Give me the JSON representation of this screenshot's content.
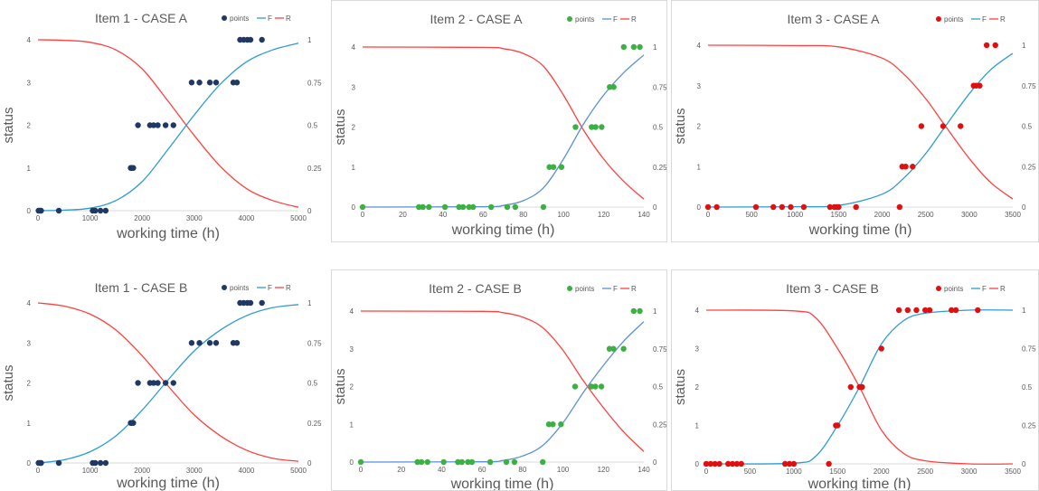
{
  "chart_data": [
    {
      "id": "item1-case-a",
      "type": "scatter",
      "title": "Item 1 - CASE A",
      "xlabel": "working time (h)",
      "ylabel": "status",
      "xlim": [
        0,
        5000
      ],
      "ylim": [
        0,
        4
      ],
      "y2lim": [
        0,
        1
      ],
      "x_ticks": [
        "0",
        "1000",
        "2000",
        "3000",
        "4000",
        "5000"
      ],
      "y_ticks": [
        "0",
        "1",
        "2",
        "3",
        "4"
      ],
      "y2_ticks": [
        "0",
        "0.25",
        "0.5",
        "0.75",
        "1"
      ],
      "legend": [
        "points",
        "F",
        "R"
      ],
      "legend_position": "top-right",
      "point_color": "#1f3864",
      "f_color": "#2e9bd1",
      "r_color": "#ff4040",
      "grid": false,
      "points": [
        [
          10,
          0
        ],
        [
          40,
          0
        ],
        [
          60,
          0
        ],
        [
          400,
          0
        ],
        [
          1050,
          0
        ],
        [
          1100,
          0
        ],
        [
          1200,
          0
        ],
        [
          1300,
          0
        ],
        [
          1780,
          1
        ],
        [
          1800,
          1
        ],
        [
          1830,
          1
        ],
        [
          1920,
          2
        ],
        [
          2150,
          2
        ],
        [
          2220,
          2
        ],
        [
          2300,
          2
        ],
        [
          2450,
          2
        ],
        [
          2600,
          2
        ],
        [
          2950,
          3
        ],
        [
          3100,
          3
        ],
        [
          3300,
          3
        ],
        [
          3420,
          3
        ],
        [
          3750,
          3
        ],
        [
          3820,
          3
        ],
        [
          3880,
          4
        ],
        [
          3950,
          4
        ],
        [
          4020,
          4
        ],
        [
          4080,
          4
        ],
        [
          4300,
          4
        ]
      ],
      "curve_F": [
        [
          0,
          0
        ],
        [
          500,
          0.003
        ],
        [
          1000,
          0.015
        ],
        [
          1500,
          0.06
        ],
        [
          2000,
          0.17
        ],
        [
          2500,
          0.36
        ],
        [
          3000,
          0.56
        ],
        [
          3500,
          0.74
        ],
        [
          4000,
          0.87
        ],
        [
          4500,
          0.94
        ],
        [
          5000,
          0.98
        ]
      ],
      "curve_R": [
        [
          0,
          1
        ],
        [
          500,
          0.997
        ],
        [
          1000,
          0.985
        ],
        [
          1500,
          0.94
        ],
        [
          2000,
          0.83
        ],
        [
          2500,
          0.64
        ],
        [
          3000,
          0.44
        ],
        [
          3500,
          0.26
        ],
        [
          4000,
          0.13
        ],
        [
          4500,
          0.06
        ],
        [
          5000,
          0.02
        ]
      ]
    },
    {
      "id": "item2-case-a",
      "type": "scatter",
      "title": "Item 2 - CASE A",
      "xlabel": "working time (h)",
      "ylabel": "status",
      "xlim": [
        0,
        140
      ],
      "ylim": [
        0,
        4
      ],
      "y2lim": [
        0,
        1
      ],
      "x_ticks": [
        "0",
        "20",
        "40",
        "60",
        "80",
        "100",
        "120",
        "140"
      ],
      "y_ticks": [
        "0",
        "1",
        "2",
        "3",
        "4"
      ],
      "y2_ticks": [
        "0",
        "0.25",
        "0.5",
        "0.75",
        "1"
      ],
      "legend": [
        "points",
        "F",
        "R"
      ],
      "legend_position": "top-right",
      "point_color": "#3cb043",
      "f_color": "#5b8fd6",
      "r_color": "#ff4040",
      "grid": false,
      "points": [
        [
          0,
          0
        ],
        [
          28,
          0
        ],
        [
          30,
          0
        ],
        [
          33,
          0
        ],
        [
          41,
          0
        ],
        [
          48,
          0
        ],
        [
          50,
          0
        ],
        [
          53,
          0
        ],
        [
          55,
          0
        ],
        [
          64,
          0
        ],
        [
          72,
          0
        ],
        [
          76,
          0
        ],
        [
          90,
          0
        ],
        [
          93,
          1
        ],
        [
          95,
          1
        ],
        [
          99,
          1
        ],
        [
          106,
          2
        ],
        [
          114,
          2
        ],
        [
          116,
          2
        ],
        [
          119,
          2
        ],
        [
          123,
          3
        ],
        [
          125,
          3
        ],
        [
          130,
          4
        ],
        [
          135,
          4
        ],
        [
          138,
          4
        ]
      ],
      "curve_F": [
        [
          0,
          0
        ],
        [
          60,
          0.002
        ],
        [
          70,
          0.01
        ],
        [
          80,
          0.04
        ],
        [
          90,
          0.12
        ],
        [
          100,
          0.3
        ],
        [
          110,
          0.52
        ],
        [
          120,
          0.7
        ],
        [
          130,
          0.84
        ],
        [
          140,
          0.95
        ]
      ],
      "curve_R": [
        [
          0,
          1
        ],
        [
          60,
          0.998
        ],
        [
          70,
          0.99
        ],
        [
          80,
          0.96
        ],
        [
          90,
          0.88
        ],
        [
          100,
          0.7
        ],
        [
          110,
          0.48
        ],
        [
          120,
          0.3
        ],
        [
          130,
          0.16
        ],
        [
          140,
          0.05
        ]
      ]
    },
    {
      "id": "item3-case-a",
      "type": "scatter",
      "title": "Item 3 - CASE A",
      "xlabel": "working time (h)",
      "ylabel": "status",
      "xlim": [
        0,
        3500
      ],
      "ylim": [
        0,
        4
      ],
      "y2lim": [
        0,
        1
      ],
      "x_ticks": [
        "0",
        "500",
        "1000",
        "1500",
        "2000",
        "2500",
        "3000",
        "3500"
      ],
      "y_ticks": [
        "0",
        "1",
        "2",
        "3",
        "4"
      ],
      "y2_ticks": [
        "0",
        "0.25",
        "0.5",
        "0.75",
        "1"
      ],
      "legend": [
        "points",
        "F",
        "R"
      ],
      "legend_position": "top-right",
      "point_color": "#e01010",
      "f_color": "#2e9bd1",
      "r_color": "#ff4040",
      "grid": false,
      "points": [
        [
          0,
          0
        ],
        [
          100,
          0
        ],
        [
          550,
          0
        ],
        [
          750,
          0
        ],
        [
          850,
          0
        ],
        [
          950,
          0
        ],
        [
          1100,
          0
        ],
        [
          1400,
          0
        ],
        [
          1450,
          0
        ],
        [
          1480,
          0
        ],
        [
          1500,
          0
        ],
        [
          1700,
          0
        ],
        [
          2200,
          0
        ],
        [
          2230,
          1
        ],
        [
          2270,
          1
        ],
        [
          2350,
          1
        ],
        [
          2450,
          2
        ],
        [
          2700,
          2
        ],
        [
          2900,
          2
        ],
        [
          3050,
          3
        ],
        [
          3080,
          3
        ],
        [
          3120,
          3
        ],
        [
          3200,
          4
        ],
        [
          3300,
          4
        ]
      ],
      "curve_F": [
        [
          0,
          0
        ],
        [
          1000,
          0.002
        ],
        [
          1500,
          0.01
        ],
        [
          2000,
          0.08
        ],
        [
          2250,
          0.18
        ],
        [
          2500,
          0.33
        ],
        [
          2700,
          0.48
        ],
        [
          3000,
          0.7
        ],
        [
          3250,
          0.85
        ],
        [
          3500,
          0.95
        ]
      ],
      "curve_R": [
        [
          0,
          1
        ],
        [
          1000,
          0.998
        ],
        [
          1500,
          0.99
        ],
        [
          2000,
          0.92
        ],
        [
          2250,
          0.82
        ],
        [
          2500,
          0.67
        ],
        [
          2700,
          0.52
        ],
        [
          3000,
          0.3
        ],
        [
          3250,
          0.15
        ],
        [
          3500,
          0.05
        ]
      ]
    },
    {
      "id": "item1-case-b",
      "type": "scatter",
      "title": "Item 1 - CASE B",
      "xlabel": "working time (h)",
      "ylabel": "status",
      "xlim": [
        0,
        5000
      ],
      "ylim": [
        0,
        4
      ],
      "y2lim": [
        0,
        1
      ],
      "x_ticks": [
        "0",
        "1000",
        "2000",
        "3000",
        "4000",
        "5000"
      ],
      "y_ticks": [
        "0",
        "1",
        "2",
        "3",
        "4"
      ],
      "y2_ticks": [
        "0",
        "0.25",
        "0.5",
        "0.75",
        "1"
      ],
      "legend": [
        "points",
        "F",
        "R"
      ],
      "legend_position": "top-right",
      "point_color": "#1f3864",
      "f_color": "#2e9bd1",
      "r_color": "#ff4040",
      "grid": false,
      "points": [
        [
          10,
          0
        ],
        [
          40,
          0
        ],
        [
          60,
          0
        ],
        [
          400,
          0
        ],
        [
          1050,
          0
        ],
        [
          1100,
          0
        ],
        [
          1200,
          0
        ],
        [
          1300,
          0
        ],
        [
          1780,
          1
        ],
        [
          1800,
          1
        ],
        [
          1830,
          1
        ],
        [
          1920,
          2
        ],
        [
          2150,
          2
        ],
        [
          2220,
          2
        ],
        [
          2300,
          2
        ],
        [
          2450,
          2
        ],
        [
          2600,
          2
        ],
        [
          2950,
          3
        ],
        [
          3100,
          3
        ],
        [
          3300,
          3
        ],
        [
          3420,
          3
        ],
        [
          3750,
          3
        ],
        [
          3820,
          3
        ],
        [
          3880,
          4
        ],
        [
          3950,
          4
        ],
        [
          4020,
          4
        ],
        [
          4080,
          4
        ],
        [
          4300,
          4
        ]
      ],
      "curve_F": [
        [
          0,
          0
        ],
        [
          500,
          0.02
        ],
        [
          1000,
          0.07
        ],
        [
          1500,
          0.17
        ],
        [
          2000,
          0.33
        ],
        [
          2500,
          0.52
        ],
        [
          3000,
          0.7
        ],
        [
          3500,
          0.83
        ],
        [
          4000,
          0.92
        ],
        [
          4500,
          0.97
        ],
        [
          5000,
          0.99
        ]
      ],
      "curve_R": [
        [
          0,
          1
        ],
        [
          500,
          0.98
        ],
        [
          1000,
          0.93
        ],
        [
          1500,
          0.83
        ],
        [
          2000,
          0.67
        ],
        [
          2500,
          0.48
        ],
        [
          3000,
          0.3
        ],
        [
          3500,
          0.17
        ],
        [
          4000,
          0.08
        ],
        [
          4500,
          0.03
        ],
        [
          5000,
          0.01
        ]
      ]
    },
    {
      "id": "item2-case-b",
      "type": "scatter",
      "title": "Item 2 - CASE B",
      "xlabel": "working time (h)",
      "ylabel": "status",
      "xlim": [
        0,
        140
      ],
      "ylim": [
        0,
        4
      ],
      "y2lim": [
        0,
        1
      ],
      "x_ticks": [
        "0",
        "20",
        "40",
        "60",
        "80",
        "100",
        "120",
        "140"
      ],
      "y_ticks": [
        "0",
        "1",
        "2",
        "3",
        "4"
      ],
      "y2_ticks": [
        "0",
        "0.25",
        "0.5",
        "0.75",
        "1"
      ],
      "legend": [
        "points",
        "F",
        "R"
      ],
      "legend_position": "top-right",
      "point_color": "#3cb043",
      "f_color": "#5b8fd6",
      "r_color": "#ff4040",
      "grid": false,
      "points": [
        [
          0,
          0
        ],
        [
          28,
          0
        ],
        [
          30,
          0
        ],
        [
          33,
          0
        ],
        [
          41,
          0
        ],
        [
          48,
          0
        ],
        [
          50,
          0
        ],
        [
          53,
          0
        ],
        [
          55,
          0
        ],
        [
          64,
          0
        ],
        [
          72,
          0
        ],
        [
          76,
          0
        ],
        [
          90,
          0
        ],
        [
          93,
          1
        ],
        [
          95,
          1
        ],
        [
          99,
          1
        ],
        [
          106,
          2
        ],
        [
          114,
          2
        ],
        [
          116,
          2
        ],
        [
          119,
          2
        ],
        [
          123,
          3
        ],
        [
          125,
          3
        ],
        [
          130,
          3
        ],
        [
          135,
          4
        ],
        [
          138,
          4
        ]
      ],
      "curve_F": [
        [
          0,
          0
        ],
        [
          60,
          0.002
        ],
        [
          70,
          0.01
        ],
        [
          80,
          0.04
        ],
        [
          90,
          0.11
        ],
        [
          100,
          0.26
        ],
        [
          110,
          0.46
        ],
        [
          120,
          0.64
        ],
        [
          130,
          0.8
        ],
        [
          140,
          0.93
        ]
      ],
      "curve_R": [
        [
          0,
          1
        ],
        [
          60,
          0.998
        ],
        [
          70,
          0.99
        ],
        [
          80,
          0.96
        ],
        [
          90,
          0.89
        ],
        [
          100,
          0.74
        ],
        [
          110,
          0.54
        ],
        [
          120,
          0.36
        ],
        [
          130,
          0.2
        ],
        [
          140,
          0.07
        ]
      ]
    },
    {
      "id": "item3-case-b",
      "type": "scatter",
      "title": "Item 3 - CASE B",
      "xlabel": "working time (h)",
      "ylabel": "status",
      "xlim": [
        0,
        3500
      ],
      "ylim": [
        0,
        4
      ],
      "y2lim": [
        0,
        1
      ],
      "x_ticks": [
        "0",
        "500",
        "1000",
        "1500",
        "2000",
        "2500",
        "3000",
        "3500"
      ],
      "y_ticks": [
        "0",
        "1",
        "2",
        "3",
        "4"
      ],
      "y2_ticks": [
        "0",
        "0.25",
        "0.5",
        "0.75",
        "1"
      ],
      "legend": [
        "points",
        "F",
        "R"
      ],
      "legend_position": "top-right",
      "point_color": "#e01010",
      "f_color": "#2e9bd1",
      "r_color": "#ff4040",
      "grid": false,
      "points": [
        [
          0,
          0
        ],
        [
          50,
          0
        ],
        [
          100,
          0
        ],
        [
          150,
          0
        ],
        [
          250,
          0
        ],
        [
          300,
          0
        ],
        [
          350,
          0
        ],
        [
          400,
          0
        ],
        [
          900,
          0
        ],
        [
          950,
          0
        ],
        [
          1000,
          0
        ],
        [
          1400,
          0
        ],
        [
          1480,
          1
        ],
        [
          1500,
          1
        ],
        [
          1650,
          2
        ],
        [
          1750,
          2
        ],
        [
          1780,
          2
        ],
        [
          2000,
          3
        ],
        [
          2200,
          4
        ],
        [
          2300,
          4
        ],
        [
          2400,
          4
        ],
        [
          2500,
          4
        ],
        [
          2550,
          4
        ],
        [
          2800,
          4
        ],
        [
          2850,
          4
        ],
        [
          3100,
          4
        ]
      ],
      "curve_F": [
        [
          0,
          0
        ],
        [
          1000,
          0.005
        ],
        [
          1250,
          0.05
        ],
        [
          1500,
          0.25
        ],
        [
          1750,
          0.5
        ],
        [
          2000,
          0.78
        ],
        [
          2250,
          0.93
        ],
        [
          2500,
          0.98
        ],
        [
          3000,
          1
        ],
        [
          3500,
          1
        ]
      ],
      "curve_R": [
        [
          0,
          1
        ],
        [
          1000,
          0.995
        ],
        [
          1250,
          0.95
        ],
        [
          1500,
          0.75
        ],
        [
          1750,
          0.5
        ],
        [
          2000,
          0.22
        ],
        [
          2250,
          0.07
        ],
        [
          2500,
          0.02
        ],
        [
          3000,
          0
        ],
        [
          3500,
          0
        ]
      ]
    }
  ]
}
